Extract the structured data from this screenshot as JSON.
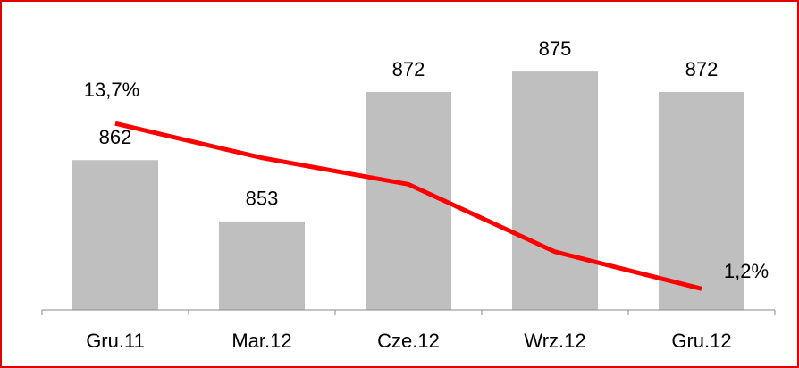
{
  "chart_data": {
    "type": "bar",
    "categories": [
      "Gru.11",
      "Mar.12",
      "Cze.12",
      "Wrz.12",
      "Gru.12"
    ],
    "ylim": [
      840,
      880
    ],
    "y2lim": [
      -0.4,
      20.2
    ],
    "series": [
      {
        "name": "bars",
        "type": "bar",
        "color": "#bfbfbf",
        "values": [
          862,
          853,
          872,
          875,
          872
        ]
      },
      {
        "name": "line",
        "type": "line",
        "axis": "y2",
        "color": "#ff0000",
        "values": [
          13.7,
          11.1,
          9.1,
          4.0,
          1.2
        ],
        "value_labels": [
          "13,7%",
          null,
          null,
          null,
          "1,2%"
        ]
      }
    ]
  }
}
